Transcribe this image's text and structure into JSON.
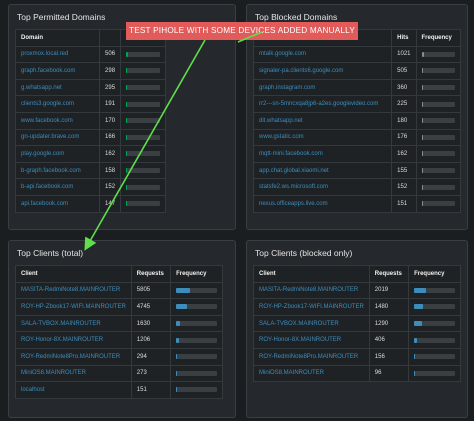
{
  "annotation": "TEST PIHOLE WITH SOME DEVICES ADDED MANUALLY",
  "panels": [
    {
      "title": "Top Permitted Domains",
      "columns": [
        "Domain"
      ],
      "bar_color": "#00a65a",
      "rows": [
        {
          "name": "proxmox.local.red",
          "count": 506,
          "frequency": 5
        },
        {
          "name": "graph.facebook.com",
          "count": 298,
          "frequency": 3
        },
        {
          "name": "g.whatsapp.net",
          "count": 295,
          "frequency": 3
        },
        {
          "name": "clients3.google.com",
          "count": 191,
          "frequency": 2
        },
        {
          "name": "www.facebook.com",
          "count": 170,
          "frequency": 2
        },
        {
          "name": "gn-updater.brave.com",
          "count": 166,
          "frequency": 2
        },
        {
          "name": "play.google.com",
          "count": 162,
          "frequency": 2
        },
        {
          "name": "b-graph.facebook.com",
          "count": 158,
          "frequency": 2
        },
        {
          "name": "b-api.facebook.com",
          "count": 152,
          "frequency": 2
        },
        {
          "name": "api.facebook.com",
          "count": 147,
          "frequency": 2
        }
      ]
    },
    {
      "title": "Top Blocked Domains",
      "columns": [
        "Domain",
        "Hits",
        "Frequency"
      ],
      "bar_color": "#8a8f94",
      "rows": [
        {
          "name": "mtalk.google.com",
          "count": 1021,
          "frequency": 8
        },
        {
          "name": "signaler-pa.clients6.google.com",
          "count": 505,
          "frequency": 4
        },
        {
          "name": "graph.instagram.com",
          "count": 360,
          "frequency": 3
        },
        {
          "name": "rr2---sn-5mncxqa8jp6-a2es.googlevideo.com",
          "count": 225,
          "frequency": 2
        },
        {
          "name": "dit.whatsapp.net",
          "count": 180,
          "frequency": 2
        },
        {
          "name": "www.gstatic.com",
          "count": 176,
          "frequency": 2
        },
        {
          "name": "mqtt-mini.facebook.com",
          "count": 162,
          "frequency": 2
        },
        {
          "name": "app.chat.global.xiaomi.net",
          "count": 155,
          "frequency": 2
        },
        {
          "name": "statsfe2.ws.microsoft.com",
          "count": 152,
          "frequency": 2
        },
        {
          "name": "nexus.officeapps.live.com",
          "count": 151,
          "frequency": 2
        }
      ]
    },
    {
      "title": "Top Clients (total)",
      "columns": [
        "Client",
        "Requests",
        "Frequency"
      ],
      "bar_color": "#3c8dbc",
      "rows": [
        {
          "name": "MASITA-RedmiNote8.MAINROUTER",
          "count": 5805,
          "frequency": 35
        },
        {
          "name": "ROY-HP-Zbook17-WIFI.MAINROUTER",
          "count": 4745,
          "frequency": 28
        },
        {
          "name": "SALA-TVBOX.MAINROUTER",
          "count": 1630,
          "frequency": 10
        },
        {
          "name": "ROY-Honor-8X.MAINROUTER",
          "count": 1206,
          "frequency": 7
        },
        {
          "name": "ROY-RedmiNote8Pro.MAINROUTER",
          "count": 294,
          "frequency": 2
        },
        {
          "name": "MiniOS8.MAINROUTER",
          "count": 273,
          "frequency": 2
        },
        {
          "name": "localhost",
          "count": 151,
          "frequency": 1
        }
      ]
    },
    {
      "title": "Top Clients (blocked only)",
      "columns": [
        "Client",
        "Requests",
        "Frequency"
      ],
      "bar_color": "#3c8dbc",
      "rows": [
        {
          "name": "MASITA-RedmiNote8.MAINROUTER",
          "count": 2019,
          "frequency": 30
        },
        {
          "name": "ROY-HP-Zbook17-WIFI.MAINROUTER",
          "count": 1480,
          "frequency": 22
        },
        {
          "name": "SALA-TVBOX.MAINROUTER",
          "count": 1290,
          "frequency": 19
        },
        {
          "name": "ROY-Honor-8X.MAINROUTER",
          "count": 406,
          "frequency": 6
        },
        {
          "name": "ROY-RedmiNote8Pro.MAINROUTER",
          "count": 156,
          "frequency": 2
        },
        {
          "name": "MiniOS8.MAINROUTER",
          "count": 96,
          "frequency": 1
        }
      ]
    }
  ]
}
